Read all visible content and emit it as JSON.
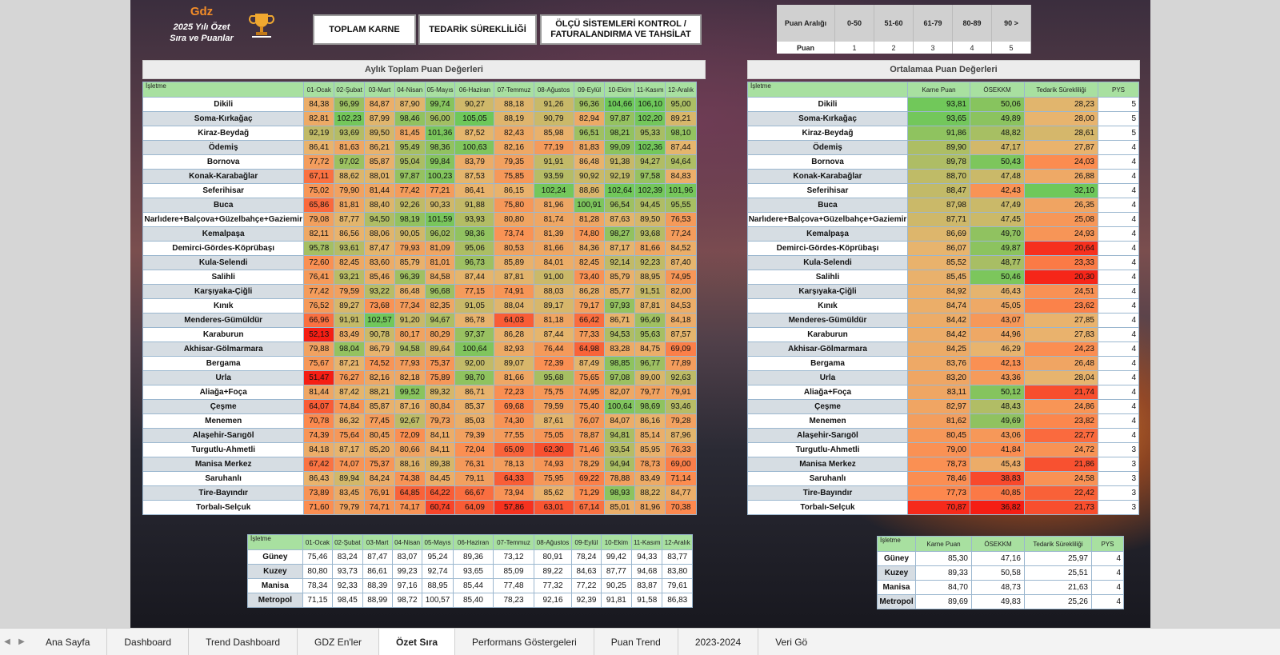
{
  "header": {
    "brand": "Gdz",
    "subtitle1": "2025 Yılı Özet",
    "subtitle2": "Sıra ve Puanlar"
  },
  "nav_buttons": [
    "TOPLAM KARNE",
    "TEDARİK SÜREKLİLİĞİ",
    "ÖLÇÜ SİSTEMLERİ KONTROL / FATURALANDIRMA VE TAHSİLAT"
  ],
  "range_table": {
    "row1_label": "Puan Aralığı",
    "ranges": [
      "0-50",
      "51-60",
      "61-79",
      "80-89",
      "90 >"
    ],
    "row2_label": "Puan",
    "scores": [
      "1",
      "2",
      "3",
      "4",
      "5"
    ]
  },
  "monthly": {
    "title": "Aylık Toplam Puan Değerleri",
    "name_header": "İşletme",
    "months": [
      "01-Ocak",
      "02-Şubat",
      "03-Mart",
      "04-Nisan",
      "05-Mayıs",
      "06-Haziran",
      "07-Temmuz",
      "08-Ağustos",
      "09-Eylül",
      "10-Ekim",
      "11-Kasım",
      "12-Aralık"
    ],
    "rows": [
      [
        "Dikili",
        "84,38",
        "96,99",
        "84,87",
        "87,90",
        "99,74",
        "90,27",
        "88,18",
        "91,26",
        "96,36",
        "104,66",
        "106,10",
        "95,00"
      ],
      [
        "Soma-Kırkağaç",
        "82,81",
        "102,23",
        "87,99",
        "98,46",
        "96,00",
        "105,05",
        "88,19",
        "90,79",
        "82,94",
        "97,87",
        "102,20",
        "89,21"
      ],
      [
        "Kiraz-Beydağ",
        "92,19",
        "93,69",
        "89,50",
        "81,45",
        "101,36",
        "87,52",
        "82,43",
        "85,98",
        "96,51",
        "98,21",
        "95,33",
        "98,10"
      ],
      [
        "Ödemiş",
        "86,41",
        "81,63",
        "86,21",
        "95,49",
        "98,36",
        "100,63",
        "82,16",
        "77,19",
        "81,83",
        "99,09",
        "102,36",
        "87,44"
      ],
      [
        "Bornova",
        "77,72",
        "97,02",
        "85,87",
        "95,04",
        "99,84",
        "83,79",
        "79,35",
        "91,91",
        "86,48",
        "91,38",
        "94,27",
        "94,64"
      ],
      [
        "Konak-Karabağlar",
        "67,11",
        "88,62",
        "88,01",
        "97,87",
        "100,23",
        "87,53",
        "75,85",
        "93,59",
        "90,92",
        "92,19",
        "97,58",
        "84,83"
      ],
      [
        "Seferihisar",
        "75,02",
        "79,90",
        "81,44",
        "77,42",
        "77,21",
        "86,41",
        "86,15",
        "102,24",
        "88,86",
        "102,64",
        "102,39",
        "101,96"
      ],
      [
        "Buca",
        "65,86",
        "81,81",
        "88,40",
        "92,26",
        "90,33",
        "91,88",
        "75,80",
        "81,96",
        "100,91",
        "96,54",
        "94,45",
        "95,55"
      ],
      [
        "Narlıdere+Balçova+Güzelbahçe+Gaziemir",
        "79,08",
        "87,77",
        "94,50",
        "98,19",
        "101,59",
        "93,93",
        "80,80",
        "81,74",
        "81,28",
        "87,63",
        "89,50",
        "76,53"
      ],
      [
        "Kemalpaşa",
        "82,11",
        "86,56",
        "88,06",
        "90,05",
        "96,02",
        "98,36",
        "73,74",
        "81,39",
        "74,80",
        "98,27",
        "93,68",
        "77,24"
      ],
      [
        "Demirci-Gördes-Köprübaşı",
        "95,78",
        "93,61",
        "87,47",
        "79,93",
        "81,09",
        "95,06",
        "80,53",
        "81,66",
        "84,36",
        "87,17",
        "81,66",
        "84,52"
      ],
      [
        "Kula-Selendi",
        "72,60",
        "82,45",
        "83,60",
        "85,79",
        "81,01",
        "96,73",
        "85,89",
        "84,01",
        "82,45",
        "92,14",
        "92,23",
        "87,40"
      ],
      [
        "Salihli",
        "76,41",
        "93,21",
        "85,46",
        "96,39",
        "84,58",
        "87,44",
        "87,81",
        "91,00",
        "73,40",
        "85,79",
        "88,95",
        "74,95"
      ],
      [
        "Karşıyaka-Çiğli",
        "77,42",
        "79,59",
        "93,22",
        "86,48",
        "96,68",
        "77,15",
        "74,91",
        "88,03",
        "86,28",
        "85,77",
        "91,51",
        "82,00"
      ],
      [
        "Kınık",
        "76,52",
        "89,27",
        "73,68",
        "77,34",
        "82,35",
        "91,05",
        "88,04",
        "89,17",
        "79,17",
        "97,93",
        "87,81",
        "84,53"
      ],
      [
        "Menderes-Gümüldür",
        "66,96",
        "91,91",
        "102,57",
        "91,20",
        "94,67",
        "86,78",
        "64,03",
        "81,18",
        "66,42",
        "86,71",
        "96,49",
        "84,18"
      ],
      [
        "Karaburun",
        "52,13",
        "83,49",
        "90,78",
        "80,17",
        "80,29",
        "97,37",
        "86,28",
        "87,44",
        "77,33",
        "94,53",
        "95,63",
        "87,57"
      ],
      [
        "Akhisar-Gölmarmara",
        "79,88",
        "98,04",
        "86,79",
        "94,58",
        "89,64",
        "100,64",
        "82,93",
        "76,44",
        "64,98",
        "83,28",
        "84,75",
        "69,09"
      ],
      [
        "Bergama",
        "75,67",
        "87,21",
        "74,52",
        "77,93",
        "75,37",
        "92,00",
        "89,07",
        "72,39",
        "87,49",
        "98,85",
        "96,77",
        "77,89"
      ],
      [
        "Urla",
        "51,47",
        "76,27",
        "82,16",
        "82,18",
        "75,89",
        "98,70",
        "81,66",
        "95,68",
        "75,65",
        "97,08",
        "89,00",
        "92,63"
      ],
      [
        "Aliağa+Foça",
        "81,44",
        "87,42",
        "88,21",
        "99,52",
        "89,32",
        "86,71",
        "72,23",
        "75,75",
        "74,95",
        "82,07",
        "79,77",
        "79,91"
      ],
      [
        "Çeşme",
        "64,07",
        "74,84",
        "85,87",
        "87,16",
        "80,84",
        "85,37",
        "69,68",
        "79,59",
        "75,40",
        "100,64",
        "98,69",
        "93,46"
      ],
      [
        "Menemen",
        "70,78",
        "86,32",
        "77,45",
        "92,67",
        "79,73",
        "85,03",
        "74,30",
        "87,61",
        "76,07",
        "84,07",
        "86,16",
        "79,28"
      ],
      [
        "Alaşehir-Sarıgöl",
        "74,39",
        "75,64",
        "80,45",
        "72,09",
        "84,11",
        "79,39",
        "77,55",
        "75,05",
        "78,87",
        "94,81",
        "85,14",
        "87,96"
      ],
      [
        "Turgutlu-Ahmetli",
        "84,18",
        "87,17",
        "85,20",
        "80,66",
        "84,11",
        "72,04",
        "65,09",
        "62,30",
        "71,46",
        "93,54",
        "85,95",
        "76,33"
      ],
      [
        "Manisa Merkez",
        "67,42",
        "74,07",
        "75,37",
        "88,16",
        "89,38",
        "76,31",
        "78,13",
        "74,93",
        "78,29",
        "94,94",
        "78,73",
        "69,00"
      ],
      [
        "Saruhanlı",
        "86,43",
        "89,94",
        "84,24",
        "74,38",
        "84,45",
        "79,11",
        "64,33",
        "75,95",
        "69,22",
        "78,88",
        "83,49",
        "71,14"
      ],
      [
        "Tire-Bayındır",
        "73,89",
        "83,45",
        "76,91",
        "64,85",
        "64,22",
        "66,67",
        "73,94",
        "85,62",
        "71,29",
        "98,93",
        "88,22",
        "84,77"
      ],
      [
        "Torbalı-Selçuk",
        "71,60",
        "79,79",
        "74,71",
        "74,17",
        "60,74",
        "64,09",
        "57,86",
        "63,01",
        "67,14",
        "85,01",
        "81,96",
        "70,38"
      ]
    ]
  },
  "average": {
    "title": "Ortalamaa Puan Değerleri",
    "headers": [
      "İşletme",
      "Karne Puan",
      "ÖSEKKM",
      "Tedarik Sürekliliği",
      "PYS"
    ],
    "rows": [
      [
        "Dikili",
        "93,81",
        "50,06",
        "28,23",
        "5"
      ],
      [
        "Soma-Kırkağaç",
        "93,65",
        "49,89",
        "28,00",
        "5"
      ],
      [
        "Kiraz-Beydağ",
        "91,86",
        "48,82",
        "28,61",
        "5"
      ],
      [
        "Ödemiş",
        "89,90",
        "47,17",
        "27,87",
        "4"
      ],
      [
        "Bornova",
        "89,78",
        "50,43",
        "24,03",
        "4"
      ],
      [
        "Konak-Karabağlar",
        "88,70",
        "47,48",
        "26,88",
        "4"
      ],
      [
        "Seferihisar",
        "88,47",
        "42,43",
        "32,10",
        "4"
      ],
      [
        "Buca",
        "87,98",
        "47,49",
        "26,35",
        "4"
      ],
      [
        "Narlıdere+Balçova+Güzelbahçe+Gaziemir",
        "87,71",
        "47,45",
        "25,08",
        "4"
      ],
      [
        "Kemalpaşa",
        "86,69",
        "49,70",
        "24,93",
        "4"
      ],
      [
        "Demirci-Gördes-Köprübaşı",
        "86,07",
        "49,87",
        "20,64",
        "4"
      ],
      [
        "Kula-Selendi",
        "85,52",
        "48,77",
        "23,33",
        "4"
      ],
      [
        "Salihli",
        "85,45",
        "50,46",
        "20,30",
        "4"
      ],
      [
        "Karşıyaka-Çiğli",
        "84,92",
        "46,43",
        "24,51",
        "4"
      ],
      [
        "Kınık",
        "84,74",
        "45,05",
        "23,62",
        "4"
      ],
      [
        "Menderes-Gümüldür",
        "84,42",
        "43,07",
        "27,85",
        "4"
      ],
      [
        "Karaburun",
        "84,42",
        "44,96",
        "27,83",
        "4"
      ],
      [
        "Akhisar-Gölmarmara",
        "84,25",
        "46,29",
        "24,23",
        "4"
      ],
      [
        "Bergama",
        "83,76",
        "42,13",
        "26,48",
        "4"
      ],
      [
        "Urla",
        "83,20",
        "43,36",
        "28,04",
        "4"
      ],
      [
        "Aliağa+Foça",
        "83,11",
        "50,12",
        "21,74",
        "4"
      ],
      [
        "Çeşme",
        "82,97",
        "48,43",
        "24,86",
        "4"
      ],
      [
        "Menemen",
        "81,62",
        "49,69",
        "23,82",
        "4"
      ],
      [
        "Alaşehir-Sarıgöl",
        "80,45",
        "43,06",
        "22,77",
        "4"
      ],
      [
        "Turgutlu-Ahmetli",
        "79,00",
        "41,84",
        "24,72",
        "3"
      ],
      [
        "Manisa Merkez",
        "78,73",
        "45,43",
        "21,86",
        "3"
      ],
      [
        "Saruhanlı",
        "78,46",
        "38,83",
        "24,58",
        "3"
      ],
      [
        "Tire-Bayındır",
        "77,73",
        "40,85",
        "22,42",
        "3"
      ],
      [
        "Torbalı-Selçuk",
        "70,87",
        "36,82",
        "21,73",
        "3"
      ]
    ]
  },
  "regional_monthly": {
    "name_header": "İşletme",
    "rows": [
      [
        "Güney",
        "75,46",
        "83,24",
        "87,47",
        "83,07",
        "95,24",
        "89,36",
        "73,12",
        "80,91",
        "78,24",
        "99,42",
        "94,33",
        "83,77"
      ],
      [
        "Kuzey",
        "80,80",
        "93,73",
        "86,61",
        "99,23",
        "92,74",
        "93,65",
        "85,09",
        "89,22",
        "84,63",
        "87,77",
        "94,68",
        "83,80"
      ],
      [
        "Manisa",
        "78,34",
        "92,33",
        "88,39",
        "97,16",
        "88,95",
        "85,44",
        "77,48",
        "77,32",
        "77,22",
        "90,25",
        "83,87",
        "79,61"
      ],
      [
        "Metropol",
        "71,15",
        "98,45",
        "88,99",
        "98,72",
        "100,57",
        "85,40",
        "78,23",
        "92,16",
        "92,39",
        "91,81",
        "91,58",
        "86,83"
      ]
    ]
  },
  "regional_average": {
    "headers": [
      "İşletme",
      "Karne Puan",
      "ÖSEKKM",
      "Tedarik Sürekliliği",
      "PYS"
    ],
    "rows": [
      [
        "Güney",
        "85,30",
        "47,16",
        "25,97",
        "4"
      ],
      [
        "Kuzey",
        "89,33",
        "50,58",
        "25,51",
        "4"
      ],
      [
        "Manisa",
        "84,70",
        "48,73",
        "21,63",
        "4"
      ],
      [
        "Metropol",
        "89,69",
        "49,83",
        "25,26",
        "4"
      ]
    ]
  },
  "sheet_tabs": [
    "Ana Sayfa",
    "Dashboard",
    "Trend Dashboard",
    "GDZ En'ler",
    "Özet Sıra",
    "Performans Göstergeleri",
    "Puan Trend",
    "2023-2024",
    "Veri Gö"
  ],
  "active_tab": "Özet Sıra"
}
